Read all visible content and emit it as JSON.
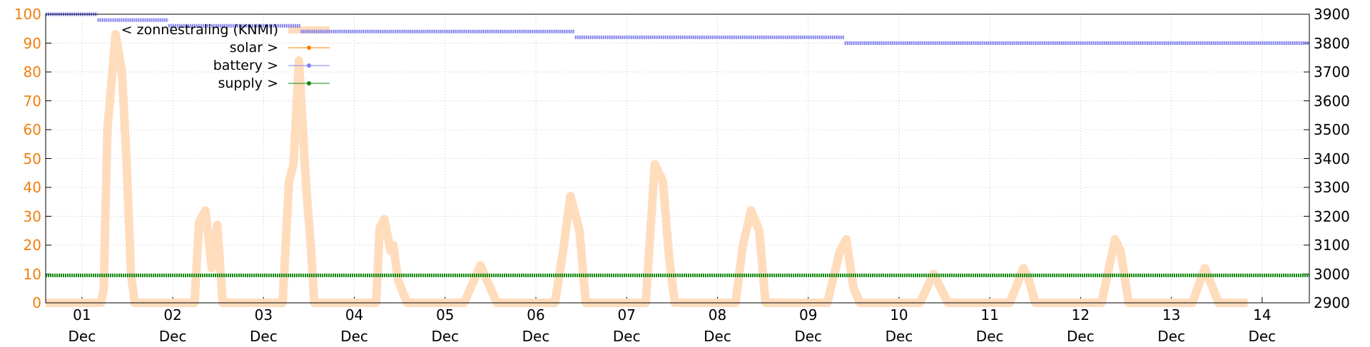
{
  "chart_data": {
    "type": "line",
    "xlim": [
      0.6,
      14.52
    ],
    "xticks": [
      {
        "value": 1,
        "label": "01 Dec"
      },
      {
        "value": 2,
        "label": "02 Dec"
      },
      {
        "value": 3,
        "label": "03 Dec"
      },
      {
        "value": 4,
        "label": "04 Dec"
      },
      {
        "value": 5,
        "label": "05 Dec"
      },
      {
        "value": 6,
        "label": "06 Dec"
      },
      {
        "value": 7,
        "label": "07 Dec"
      },
      {
        "value": 8,
        "label": "08 Dec"
      },
      {
        "value": 9,
        "label": "09 Dec"
      },
      {
        "value": 10,
        "label": "10 Dec"
      },
      {
        "value": 11,
        "label": "11 Dec"
      },
      {
        "value": 12,
        "label": "12 Dec"
      },
      {
        "value": 13,
        "label": "13 Dec"
      },
      {
        "value": 14,
        "label": "14 Dec"
      }
    ],
    "ylim": [
      0,
      100
    ],
    "yticks": [
      0,
      10,
      20,
      30,
      40,
      50,
      60,
      70,
      80,
      90,
      100
    ],
    "y2lim": [
      2900,
      3900
    ],
    "y2ticks": [
      2900,
      3000,
      3100,
      3200,
      3300,
      3400,
      3500,
      3600,
      3700,
      3800,
      3900
    ],
    "grid": true,
    "series": [
      {
        "name": "< zonnestraling (KNMI)",
        "color": "#ffdcbc",
        "axis": "y",
        "x": [
          0.6,
          1.21,
          1.24,
          1.28,
          1.37,
          1.44,
          1.49,
          1.54,
          1.58,
          2.24,
          2.29,
          2.36,
          2.43,
          2.49,
          2.55,
          3.21,
          3.28,
          3.33,
          3.39,
          3.47,
          3.52,
          3.56,
          4.24,
          4.28,
          4.33,
          4.4,
          4.43,
          4.48,
          4.58,
          5.21,
          5.39,
          5.5,
          5.57,
          6.21,
          6.3,
          6.38,
          6.48,
          6.55,
          7.21,
          7.31,
          7.4,
          7.47,
          7.53,
          8.2,
          8.28,
          8.37,
          8.46,
          8.53,
          9.21,
          9.35,
          9.42,
          9.5,
          9.57,
          10.23,
          10.38,
          10.54,
          11.22,
          11.37,
          11.43,
          11.5,
          12.23,
          12.38,
          12.44,
          12.53,
          13.23,
          13.37,
          13.52,
          13.84
        ],
        "values": [
          0,
          0,
          5,
          60,
          93,
          80,
          50,
          10,
          0,
          0,
          28,
          32,
          12,
          27,
          0,
          0,
          42,
          48,
          84,
          40,
          20,
          0,
          0,
          26,
          29,
          18,
          20,
          8,
          0,
          0,
          13,
          5,
          0,
          0,
          18,
          37,
          25,
          0,
          0,
          48,
          42,
          15,
          0,
          0,
          20,
          32,
          25,
          0,
          0,
          18,
          22,
          5,
          0,
          0,
          10,
          0,
          0,
          12,
          8,
          0,
          0,
          22,
          18,
          0,
          0,
          12,
          0,
          0
        ]
      },
      {
        "name": "solar >",
        "color": "#ff8000",
        "axis": "y2",
        "x": [
          0.6,
          14.52
        ],
        "values": [
          null,
          null
        ]
      },
      {
        "name": "battery >",
        "color": "#7f7fef",
        "axis": "y2",
        "x": [
          0.6,
          1.17,
          1.17,
          1.17,
          1.95,
          1.95,
          1.95,
          3.41,
          3.41,
          3.41,
          6.43,
          6.43,
          6.43,
          9.4,
          9.4,
          9.4,
          14.52
        ],
        "values": [
          3900,
          3900,
          null,
          3880,
          3880,
          null,
          3860,
          3860,
          null,
          3840,
          3840,
          null,
          3820,
          3820,
          null,
          3800,
          3800
        ]
      },
      {
        "name": "supply >",
        "color": "#118811",
        "axis": "y2",
        "x": [
          0.6,
          14.52
        ],
        "values": [
          2995,
          2995
        ]
      }
    ]
  }
}
